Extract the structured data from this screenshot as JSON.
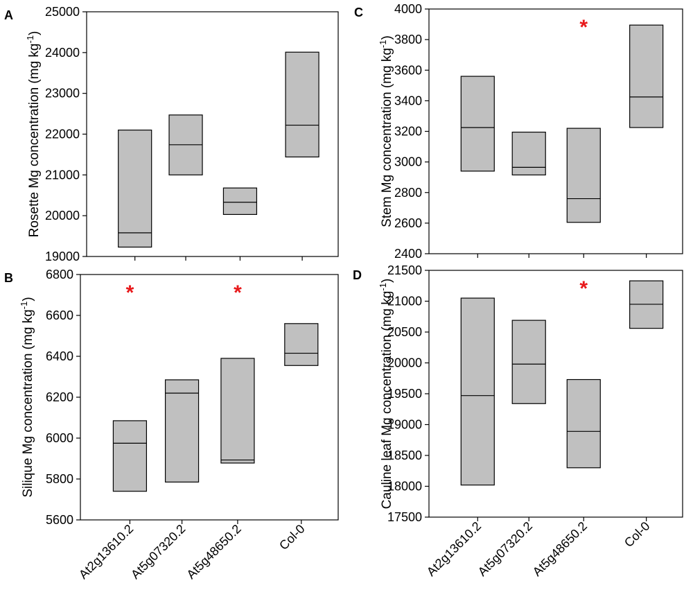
{
  "chart_data": [
    {
      "type": "box",
      "panel": "A",
      "ylabel_main": "Rosette Mg concentration (mg kg",
      "ylabel_sup": "-1",
      "ylabel_close": ")",
      "ylim": [
        19000,
        25000
      ],
      "yticks": [
        19000,
        20000,
        21000,
        22000,
        23000,
        24000,
        25000
      ],
      "yticklabels": [
        "19000",
        "20000",
        "21000",
        "22000",
        "23000",
        "24000",
        "25000"
      ],
      "categories": [
        "At2g13610.2",
        "At5g07320.2",
        "At5g48650.2",
        "Col-0"
      ],
      "boxes": [
        {
          "q1": 19230,
          "median": 19580,
          "q3": 22100
        },
        {
          "q1": 21000,
          "median": 21740,
          "q3": 22470
        },
        {
          "q1": 20030,
          "median": 20330,
          "q3": 20680
        },
        {
          "q1": 21440,
          "median": 22220,
          "q3": 24010
        }
      ],
      "significant": [],
      "sig_marker": "*"
    },
    {
      "type": "box",
      "panel": "C",
      "ylabel_main": "Stem Mg concentration (mg kg",
      "ylabel_sup": "-1",
      "ylabel_close": ")",
      "ylim": [
        2400,
        4000
      ],
      "yticks": [
        2400,
        2600,
        2800,
        3000,
        3200,
        3400,
        3600,
        3800,
        4000
      ],
      "yticklabels": [
        "2400",
        "2600",
        "2800",
        "3000",
        "3200",
        "3400",
        "3600",
        "3800",
        "4000"
      ],
      "categories": [
        "At2g13610.2",
        "At5g07320.2",
        "At5g48650.2",
        "Col-0"
      ],
      "boxes": [
        {
          "q1": 2940,
          "median": 3225,
          "q3": 3560
        },
        {
          "q1": 2915,
          "median": 2965,
          "q3": 3195
        },
        {
          "q1": 2605,
          "median": 2760,
          "q3": 3220
        },
        {
          "q1": 3225,
          "median": 3425,
          "q3": 3895
        }
      ],
      "significant": [
        2
      ],
      "sig_marker": "*"
    },
    {
      "type": "box",
      "panel": "B",
      "ylabel_main": "Silique Mg concentration (mg kg",
      "ylabel_sup": "-1",
      "ylabel_close": ")",
      "ylim": [
        5600,
        6800
      ],
      "yticks": [
        5600,
        5800,
        6000,
        6200,
        6400,
        6600,
        6800
      ],
      "yticklabels": [
        "5600",
        "5800",
        "6000",
        "6200",
        "6400",
        "6600",
        "6800"
      ],
      "categories": [
        "At2g13610.2",
        "At5g07320.2",
        "At5g48650.2",
        "Col-0"
      ],
      "boxes": [
        {
          "q1": 5740,
          "median": 5975,
          "q3": 6085
        },
        {
          "q1": 5785,
          "median": 6220,
          "q3": 6285
        },
        {
          "q1": 5878,
          "median": 5893,
          "q3": 6390
        },
        {
          "q1": 6355,
          "median": 6415,
          "q3": 6560
        }
      ],
      "significant": [
        0,
        2
      ],
      "sig_marker": "*"
    },
    {
      "type": "box",
      "panel": "D",
      "ylabel_main": "Cauline leaf Mg concentration (mg kg",
      "ylabel_sup": "-1",
      "ylabel_close": ")",
      "ylim": [
        17500,
        21500
      ],
      "yticks": [
        17500,
        18000,
        18500,
        19000,
        19500,
        20000,
        20500,
        21000,
        21500
      ],
      "yticklabels": [
        "17500",
        "18000",
        "18500",
        "19000",
        "19500",
        "20000",
        "20500",
        "21000",
        "21500"
      ],
      "categories": [
        "At2g13610.2",
        "At5g07320.2",
        "At5g48650.2",
        "Col-0"
      ],
      "boxes": [
        {
          "q1": 18020,
          "median": 19470,
          "q3": 21050
        },
        {
          "q1": 19340,
          "median": 19980,
          "q3": 20690
        },
        {
          "q1": 18300,
          "median": 18890,
          "q3": 19730
        },
        {
          "q1": 20560,
          "median": 20950,
          "q3": 21330
        }
      ],
      "significant": [
        2
      ],
      "sig_marker": "*"
    }
  ],
  "colors": {
    "box_fill": "#c0c0c0",
    "box_stroke": "#000000",
    "sig_marker": "#e8191b"
  }
}
